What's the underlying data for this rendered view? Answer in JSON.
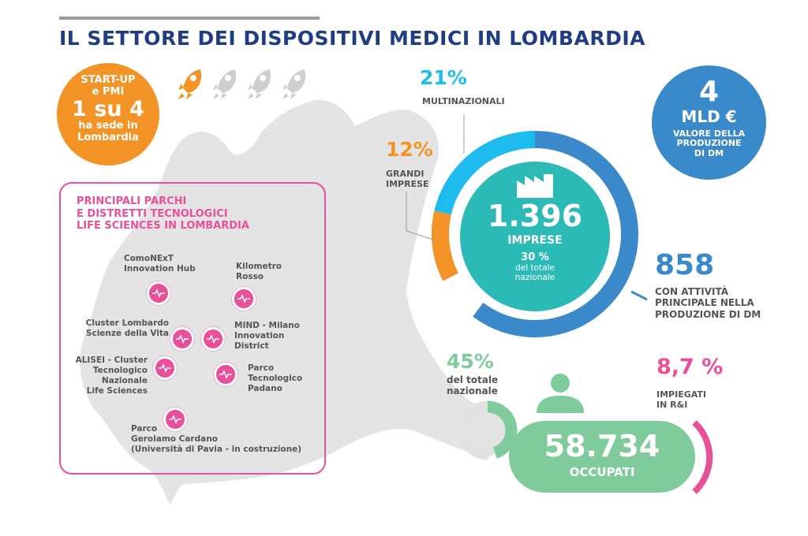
{
  "title": "IL SETTORE DEI DISPOSITIVI MEDICI IN LOMBARDIA",
  "colors": {
    "navy": "#1f3d85",
    "orange": "#f39325",
    "light_blue": "#1ebbee",
    "blue": "#3a8acb",
    "teal": "#2bbab5",
    "green": "#80cb9c",
    "pink": "#e8509a",
    "gray_map": "#e2e2e2"
  },
  "startup": {
    "line1": "START-UP",
    "line2": "e PMI",
    "big": "1 su 4",
    "line3": "ha sede in",
    "line4": "Lombardia",
    "rockets_highlighted": 1,
    "rockets_total": 4
  },
  "parks": {
    "title_lines": [
      "PRINCIPALI PARCHI",
      "E DISTRETTI TECNOLOGICI",
      "LIFE SCIENCES IN LOMBARDIA"
    ],
    "items": [
      {
        "lines": [
          "ComoNExT",
          "Innovation Hub"
        ]
      },
      {
        "lines": [
          "Kilometro",
          "Rosso"
        ]
      },
      {
        "lines": [
          "Cluster Lombardo",
          "Scienze della Vita"
        ]
      },
      {
        "lines": [
          "MIND - Milano",
          "Innovation",
          "District"
        ]
      },
      {
        "lines": [
          "ALISEI - Cluster",
          "Tecnologico",
          "Nazionale",
          "Life Sciences"
        ]
      },
      {
        "lines": [
          "Parco",
          "Tecnologico",
          "Padano"
        ]
      },
      {
        "lines": [
          "Parco",
          "Gerolamo Cardano",
          "(Università di Pavia - in costruzione)"
        ]
      }
    ]
  },
  "companies": {
    "total": "1.396",
    "total_label": "IMPRESE",
    "share": "30 %",
    "share_l1": "del totale",
    "share_l2": "nazionale",
    "multinational_pct": "21%",
    "multinational_label": "MULTINAZIONALI",
    "large_pct": "12%",
    "large_l1": "GRANDI",
    "large_l2": "IMPRESE",
    "production_count": "858",
    "production_l1": "CON ATTIVITÀ",
    "production_l2": "PRINCIPALE NELLA",
    "production_l3": "PRODUZIONE DI DM"
  },
  "chart_data": {
    "type": "pie",
    "title": "1.396 IMPRESE",
    "slices": [
      {
        "label": "CON ATTIVITÀ PRINCIPALE NELLA PRODUZIONE DI DM",
        "value": 858,
        "color": "#3a8acb"
      },
      {
        "label": "MULTINAZIONALI",
        "value_pct": 21,
        "color": "#1ebbee"
      },
      {
        "label": "GRANDI IMPRESE",
        "value_pct": 12,
        "color": "#f39325"
      }
    ]
  },
  "production_value": {
    "big": "4",
    "unit": "MLD €",
    "l1": "VALORE DELLA",
    "l2": "PRODUZIONE",
    "l3": "DI DM"
  },
  "employment": {
    "pct": "45%",
    "pct_l1": "del totale",
    "pct_l2": "nazionale",
    "pct_value": 45,
    "total": "58.734",
    "total_label": "OCCUPATI",
    "rd_pct": "8,7 %",
    "rd_l1": "IMPIEGATI",
    "rd_l2": "IN R&I"
  }
}
